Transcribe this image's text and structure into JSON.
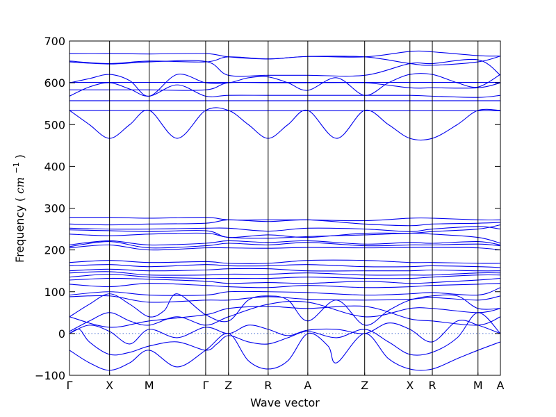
{
  "chart_data": {
    "type": "line",
    "title": "",
    "xlabel": "Wave vector",
    "ylabel_text": "Frequency",
    "ylabel_unit_base": "cm",
    "ylabel_unit_exp": "−1",
    "ylim": [
      -100,
      700
    ],
    "yticks": [
      -100,
      0,
      100,
      200,
      300,
      400,
      500,
      600,
      700
    ],
    "xlim": [
      0,
      1
    ],
    "high_symmetry_points": [
      {
        "label": "Γ",
        "x": 0.0
      },
      {
        "label": "X",
        "x": 0.093
      },
      {
        "label": "M",
        "x": 0.185
      },
      {
        "label": "Γ",
        "x": 0.316
      },
      {
        "label": "Z",
        "x": 0.369
      },
      {
        "label": "R",
        "x": 0.461
      },
      {
        "label": "A",
        "x": 0.553
      },
      {
        "label": "Z",
        "x": 0.685
      },
      {
        "label": "X",
        "x": 0.79
      },
      {
        "label": "R",
        "x": 0.842
      },
      {
        "label": "M",
        "x": 0.948
      },
      {
        "label": "A",
        "x": 1.0
      }
    ],
    "zero_line": 0,
    "line_color": "#0000ee",
    "zero_line_color": "#4a6fd0",
    "series": [
      {
        "x": [
          0,
          0.093,
          0.185,
          0.316,
          0.369,
          0.461,
          0.553,
          0.685,
          0.79,
          0.842,
          0.948,
          1.0
        ],
        "y": [
          670,
          670,
          669,
          670,
          662,
          657,
          663,
          662,
          675,
          674,
          665,
          664
        ]
      },
      {
        "x": [
          0,
          0.093,
          0.185,
          0.316,
          0.369,
          0.461,
          0.553,
          0.685,
          0.79,
          0.842,
          0.948,
          1.0
        ],
        "y": [
          652,
          646,
          652,
          650,
          662,
          657,
          663,
          662,
          646,
          642,
          650,
          664
        ]
      },
      {
        "x": [
          0,
          0.093,
          0.185,
          0.316,
          0.369,
          0.461,
          0.553,
          0.685,
          0.79,
          0.842,
          0.948,
          1.0
        ],
        "y": [
          650,
          645,
          650,
          651,
          618,
          618,
          618,
          618,
          646,
          646,
          655,
          618
        ]
      },
      {
        "x": [
          0,
          0.046,
          0.093,
          0.14,
          0.185,
          0.25,
          0.316,
          0.369,
          0.415,
          0.461,
          0.507,
          0.553,
          0.62,
          0.685,
          0.74,
          0.79,
          0.842,
          0.9,
          0.948,
          1.0
        ],
        "y": [
          600,
          610,
          620,
          605,
          568,
          620,
          600,
          600,
          612,
          614,
          600,
          582,
          612,
          570,
          600,
          620,
          620,
          600,
          590,
          620
        ]
      },
      {
        "x": [
          0,
          0.093,
          0.185,
          0.316,
          0.369,
          0.461,
          0.553,
          0.685,
          0.79,
          0.842,
          0.948,
          1.0
        ],
        "y": [
          601,
          601,
          601,
          601,
          601,
          601,
          601,
          601,
          601,
          601,
          601,
          601
        ]
      },
      {
        "x": [
          0,
          0.093,
          0.185,
          0.316,
          0.369,
          0.461,
          0.553,
          0.685,
          0.79,
          0.842,
          0.948,
          1.0
        ],
        "y": [
          583,
          583,
          583,
          583,
          600,
          600,
          600,
          600,
          588,
          588,
          588,
          600
        ]
      },
      {
        "x": [
          0,
          0.046,
          0.093,
          0.14,
          0.185,
          0.25,
          0.316,
          0.369,
          0.461,
          0.553,
          0.685,
          0.79,
          0.842,
          0.948,
          1.0
        ],
        "y": [
          568,
          590,
          600,
          585,
          568,
          595,
          568,
          570,
          570,
          570,
          570,
          570,
          568,
          565,
          570
        ]
      },
      {
        "x": [
          0,
          0.093,
          0.185,
          0.316,
          0.369,
          0.461,
          0.553,
          0.685,
          0.79,
          0.842,
          0.948,
          1.0
        ],
        "y": [
          557,
          557,
          557,
          557,
          557,
          557,
          557,
          557,
          557,
          557,
          557,
          557
        ]
      },
      {
        "x": [
          0,
          0.093,
          0.185,
          0.316,
          0.369,
          0.461,
          0.553,
          0.685,
          0.79,
          0.842,
          0.948,
          1.0
        ],
        "y": [
          534,
          534,
          534,
          533,
          533,
          533,
          533,
          533,
          533,
          533,
          533,
          533
        ]
      },
      {
        "x": [
          0,
          0.046,
          0.093,
          0.14,
          0.185,
          0.25,
          0.316,
          0.369,
          0.415,
          0.461,
          0.507,
          0.553,
          0.62,
          0.685,
          0.74,
          0.79,
          0.842,
          0.9,
          0.948,
          1.0
        ],
        "y": [
          534,
          500,
          467,
          500,
          534,
          467,
          534,
          534,
          500,
          467,
          500,
          534,
          467,
          534,
          500,
          467,
          467,
          500,
          534,
          534
        ]
      },
      {
        "x": [
          0,
          0.093,
          0.185,
          0.316,
          0.369,
          0.461,
          0.553,
          0.685,
          0.79,
          0.842,
          0.948,
          1.0
        ],
        "y": [
          278,
          278,
          276,
          278,
          272,
          272,
          272,
          270,
          276,
          276,
          272,
          272
        ]
      },
      {
        "x": [
          0,
          0.093,
          0.185,
          0.316,
          0.369,
          0.461,
          0.553,
          0.685,
          0.79,
          0.842,
          0.948,
          1.0
        ],
        "y": [
          262,
          260,
          262,
          264,
          272,
          268,
          272,
          262,
          258,
          262,
          264,
          266
        ]
      },
      {
        "x": [
          0,
          0.093,
          0.185,
          0.316,
          0.369,
          0.461,
          0.553,
          0.685,
          0.79,
          0.842,
          0.948,
          1.0
        ],
        "y": [
          252,
          250,
          250,
          252,
          252,
          245,
          252,
          250,
          244,
          250,
          256,
          250
        ]
      },
      {
        "x": [
          0,
          0.093,
          0.185,
          0.316,
          0.369,
          0.461,
          0.553,
          0.685,
          0.79,
          0.842,
          0.948,
          1.0
        ],
        "y": [
          248,
          246,
          244,
          246,
          230,
          236,
          230,
          240,
          240,
          244,
          250,
          260
        ]
      },
      {
        "x": [
          0,
          0.093,
          0.185,
          0.316,
          0.369,
          0.461,
          0.553,
          0.685,
          0.79,
          0.842,
          0.948,
          1.0
        ],
        "y": [
          238,
          234,
          238,
          240,
          230,
          228,
          232,
          236,
          240,
          238,
          230,
          216
        ]
      },
      {
        "x": [
          0,
          0.093,
          0.185,
          0.316,
          0.369,
          0.461,
          0.553,
          0.685,
          0.79,
          0.842,
          0.948,
          1.0
        ],
        "y": [
          212,
          222,
          212,
          216,
          222,
          218,
          222,
          214,
          218,
          216,
          220,
          212
        ]
      },
      {
        "x": [
          0,
          0.093,
          0.185,
          0.316,
          0.369,
          0.461,
          0.553,
          0.685,
          0.79,
          0.842,
          0.948,
          1.0
        ],
        "y": [
          208,
          220,
          205,
          210,
          216,
          212,
          218,
          210,
          212,
          212,
          214,
          210
        ]
      },
      {
        "x": [
          0,
          0.093,
          0.185,
          0.316,
          0.369,
          0.461,
          0.553,
          0.685,
          0.79,
          0.842,
          0.948,
          1.0
        ],
        "y": [
          205,
          212,
          200,
          205,
          205,
          204,
          206,
          205,
          206,
          206,
          205,
          200
        ]
      },
      {
        "x": [
          0,
          0.093,
          0.185,
          0.316,
          0.369,
          0.461,
          0.553,
          0.685,
          0.79,
          0.842,
          0.948,
          1.0
        ],
        "y": [
          170,
          175,
          170,
          172,
          168,
          168,
          175,
          175,
          170,
          170,
          168,
          168
        ]
      },
      {
        "x": [
          0,
          0.093,
          0.185,
          0.316,
          0.369,
          0.461,
          0.553,
          0.685,
          0.79,
          0.842,
          0.948,
          1.0
        ],
        "y": [
          162,
          165,
          160,
          165,
          162,
          162,
          165,
          160,
          160,
          162,
          160,
          158
        ]
      },
      {
        "x": [
          0,
          0.093,
          0.185,
          0.316,
          0.369,
          0.461,
          0.553,
          0.685,
          0.79,
          0.842,
          0.948,
          1.0
        ],
        "y": [
          150,
          154,
          150,
          152,
          155,
          155,
          150,
          150,
          150,
          152,
          150,
          150
        ]
      },
      {
        "x": [
          0,
          0.093,
          0.185,
          0.316,
          0.369,
          0.461,
          0.553,
          0.685,
          0.79,
          0.842,
          0.948,
          1.0
        ],
        "y": [
          145,
          148,
          140,
          140,
          142,
          142,
          145,
          140,
          140,
          140,
          145,
          145
        ]
      },
      {
        "x": [
          0,
          0.093,
          0.185,
          0.316,
          0.369,
          0.461,
          0.553,
          0.685,
          0.79,
          0.842,
          0.948,
          1.0
        ],
        "y": [
          135,
          142,
          135,
          132,
          132,
          132,
          135,
          132,
          132,
          135,
          140,
          140
        ]
      },
      {
        "x": [
          0,
          0.093,
          0.185,
          0.316,
          0.369,
          0.461,
          0.553,
          0.685,
          0.79,
          0.842,
          0.948,
          1.0
        ],
        "y": [
          128,
          132,
          130,
          125,
          120,
          122,
          120,
          125,
          120,
          122,
          128,
          132
        ]
      },
      {
        "x": [
          0,
          0.093,
          0.185,
          0.316,
          0.369,
          0.461,
          0.553,
          0.685,
          0.79,
          0.842,
          0.948,
          1.0
        ],
        "y": [
          118,
          112,
          120,
          115,
          112,
          110,
          115,
          110,
          112,
          115,
          118,
          120
        ]
      },
      {
        "x": [
          0,
          0.093,
          0.185,
          0.316,
          0.369,
          0.461,
          0.553,
          0.685,
          0.79,
          0.842,
          0.948,
          1.0
        ],
        "y": [
          92,
          100,
          92,
          92,
          100,
          100,
          98,
          92,
          95,
          98,
          92,
          110
        ]
      },
      {
        "x": [
          0,
          0.093,
          0.185,
          0.316,
          0.369,
          0.461,
          0.553,
          0.685,
          0.79,
          0.842,
          0.948,
          1.0
        ],
        "y": [
          88,
          90,
          75,
          80,
          80,
          88,
          82,
          80,
          82,
          86,
          80,
          90
        ]
      },
      {
        "x": [
          0,
          0.046,
          0.093,
          0.14,
          0.185,
          0.25,
          0.316,
          0.369,
          0.461,
          0.553,
          0.685,
          0.79,
          0.842,
          0.948,
          1.0
        ],
        "y": [
          5,
          30,
          50,
          30,
          20,
          40,
          20,
          40,
          70,
          75,
          40,
          60,
          60,
          50,
          60
        ]
      },
      {
        "x": [
          0,
          0.093,
          0.185,
          0.316,
          0.369,
          0.461,
          0.553,
          0.685,
          0.79,
          0.842,
          0.948,
          1.0
        ],
        "y": [
          40,
          15,
          30,
          45,
          60,
          65,
          60,
          65,
          35,
          30,
          20,
          40
        ]
      },
      {
        "x": [
          0,
          0.023,
          0.046,
          0.093,
          0.14,
          0.185,
          0.25,
          0.316,
          0.342,
          0.369,
          0.415,
          0.461,
          0.507,
          0.553,
          0.62,
          0.685,
          0.74,
          0.79,
          0.842,
          0.9,
          0.948,
          1.0
        ],
        "y": [
          0,
          10,
          -20,
          -50,
          -45,
          -30,
          -20,
          -40,
          -25,
          -5,
          -20,
          -25,
          -10,
          5,
          -10,
          10,
          -20,
          -50,
          -45,
          -10,
          50,
          0
        ]
      },
      {
        "x": [
          0,
          0.046,
          0.093,
          0.14,
          0.185,
          0.25,
          0.316,
          0.369,
          0.415,
          0.461,
          0.507,
          0.553,
          0.6,
          0.62,
          0.685,
          0.74,
          0.79,
          0.842,
          0.9,
          0.948,
          1.0
        ],
        "y": [
          -40,
          -70,
          -88,
          -70,
          -40,
          -80,
          -40,
          0,
          -65,
          -85,
          -65,
          0,
          -30,
          -70,
          0,
          -60,
          -85,
          -85,
          -60,
          -40,
          -20
        ]
      },
      {
        "x": [
          0,
          0.046,
          0.093,
          0.14,
          0.185,
          0.22,
          0.25,
          0.316,
          0.369,
          0.415,
          0.461,
          0.507,
          0.553,
          0.62,
          0.685,
          0.74,
          0.79,
          0.842,
          0.9,
          0.948,
          1.0
        ],
        "y": [
          40,
          70,
          95,
          70,
          40,
          55,
          95,
          45,
          30,
          80,
          90,
          80,
          30,
          80,
          20,
          55,
          80,
          90,
          90,
          60,
          60
        ]
      },
      {
        "x": [
          0,
          0.046,
          0.093,
          0.14,
          0.185,
          0.25,
          0.316,
          0.369,
          0.415,
          0.461,
          0.507,
          0.553,
          0.62,
          0.685,
          0.74,
          0.79,
          0.842,
          0.9,
          0.948,
          1.0
        ],
        "y": [
          0,
          20,
          5,
          -25,
          10,
          -10,
          15,
          0,
          20,
          10,
          -5,
          8,
          10,
          0,
          25,
          10,
          -20,
          30,
          20,
          0
        ]
      }
    ]
  }
}
